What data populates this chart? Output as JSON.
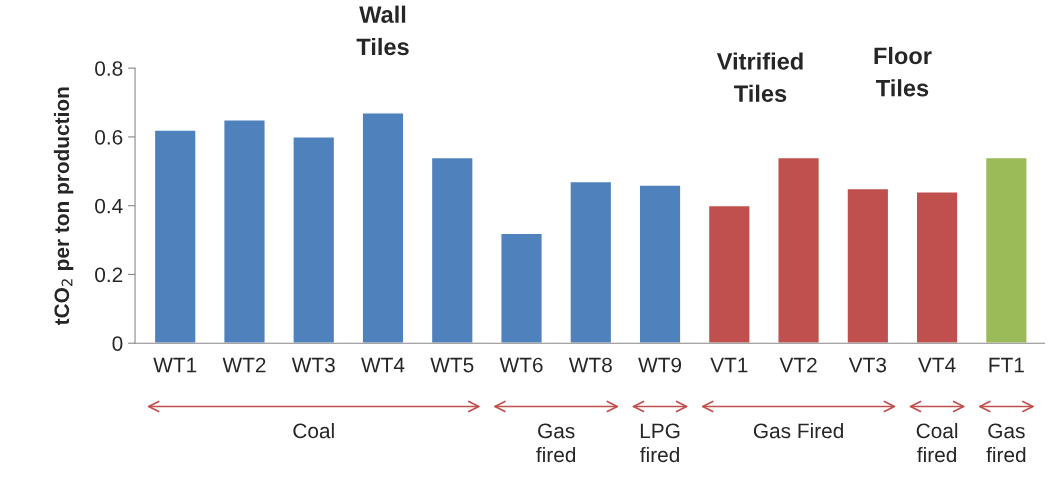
{
  "chart_data": {
    "type": "bar",
    "ylabel": "tCO$_{2}$ per ton production",
    "categories": [
      "WT1",
      "WT2",
      "WT3",
      "WT4",
      "WT5",
      "WT6",
      "WT8",
      "WT9",
      "VT1",
      "VT2",
      "VT3",
      "VT4",
      "FT1"
    ],
    "values": [
      0.62,
      0.65,
      0.6,
      0.67,
      0.54,
      0.32,
      0.47,
      0.46,
      0.4,
      0.54,
      0.45,
      0.44,
      0.54
    ],
    "colors": [
      "#4f81bd",
      "#4f81bd",
      "#4f81bd",
      "#4f81bd",
      "#4f81bd",
      "#4f81bd",
      "#4f81bd",
      "#4f81bd",
      "#c0504d",
      "#c0504d",
      "#c0504d",
      "#c0504d",
      "#9bbb59"
    ],
    "ylim": [
      0,
      0.8
    ],
    "yticks": [
      0,
      0.2,
      0.4,
      0.6,
      0.8
    ],
    "grid": false,
    "legend": false,
    "annotations": [
      "Wall\nTiles",
      "Vitrified\nTiles",
      "Floor\nTiles",
      "Coal",
      "Gas\nfired",
      "LPG\nfired",
      "Gas Fired",
      "Coal\nfired",
      "Gas\nfired"
    ]
  }
}
